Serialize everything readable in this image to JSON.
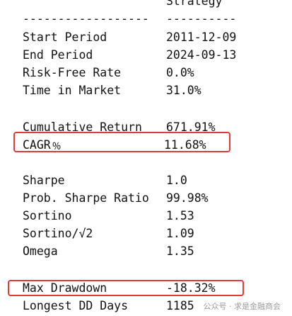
{
  "header": {
    "strategy_label": "Strategy",
    "label_rule": "------------------",
    "value_rule": "----------"
  },
  "rows": [
    {
      "label": "Start Period",
      "value": "2011-12-09"
    },
    {
      "label": "End Period",
      "value": "2024-09-13"
    },
    {
      "label": "Risk-Free Rate",
      "value": "0.0%"
    },
    {
      "label": "Time in Market",
      "value": "31.0%"
    },
    {
      "label": "Cumulative Return",
      "value": "671.91%"
    },
    {
      "label": "CAGR﹪",
      "value": "11.68%"
    },
    {
      "label": "Sharpe",
      "value": "1.0"
    },
    {
      "label": "Prob. Sharpe Ratio",
      "value": "99.98%"
    },
    {
      "label": "Sortino",
      "value": "1.53"
    },
    {
      "label": "Sortino/√2",
      "value": "1.09"
    },
    {
      "label": "Omega",
      "value": "1.35"
    },
    {
      "label": "Max Drawdown",
      "value": "-18.32%"
    },
    {
      "label": "Longest DD Days",
      "value": "1185"
    }
  ],
  "watermark": "公众号 · 求是金融商会",
  "highlight_color": "#e03a3a"
}
